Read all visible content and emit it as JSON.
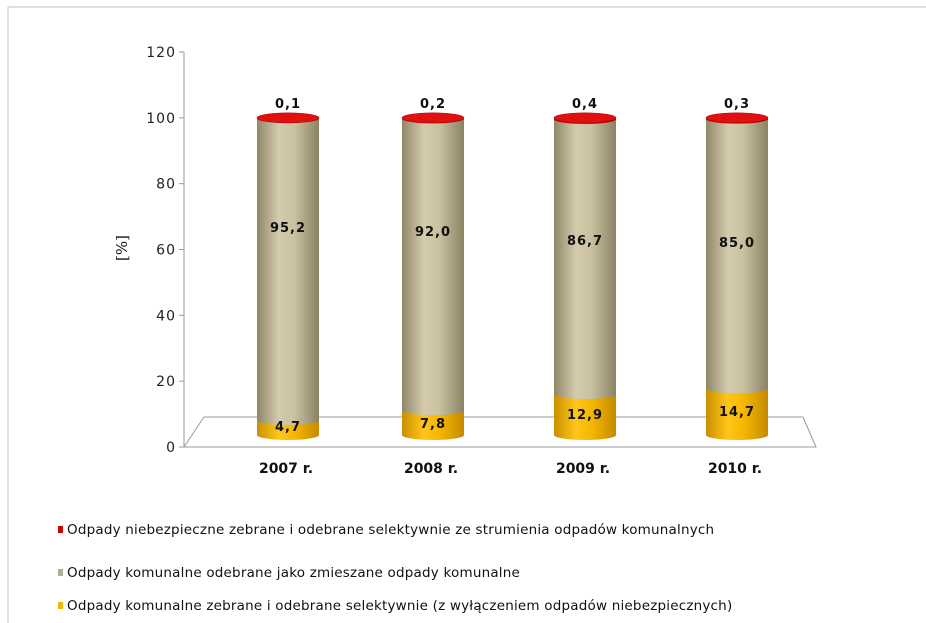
{
  "chart_data": {
    "type": "bar",
    "stacked": true,
    "orientation": "vertical",
    "style": "3d-cylinder",
    "title": "",
    "xlabel": "",
    "ylabel": "[%]",
    "ylim": [
      0,
      120
    ],
    "yticks": [
      "0",
      "20",
      "40",
      "60",
      "80",
      "100",
      "120"
    ],
    "grid": false,
    "legend_position": "bottom",
    "categories": [
      "2007 r.",
      "2008 r.",
      "2009 r.",
      "2010 r."
    ],
    "series": [
      {
        "name": "Odpady komunalne zebrane i odebrane selektywnie (z wyłączeniem odpadów niebezpiecznych)",
        "color": "#f2b600",
        "values": [
          4.7,
          7.8,
          12.9,
          14.7
        ],
        "labels": [
          "4,7",
          "7,8",
          "12,9",
          "14,7"
        ]
      },
      {
        "name": "Odpady komunalne odebrane jako zmieszane odpady komunalne",
        "color": "#c9c1a0",
        "values": [
          95.2,
          92.0,
          86.7,
          85.0
        ],
        "labels": [
          "95,2",
          "92,0",
          "86,7",
          "85,0"
        ]
      },
      {
        "name": "Odpady niebezpieczne zebrane i odebrane selektywnie ze strumienia odpadów komunalnych",
        "color": "#d40000",
        "values": [
          0.1,
          0.2,
          0.4,
          0.3
        ],
        "labels": [
          "0,1",
          "0,2",
          "0,4",
          "0,3"
        ]
      }
    ],
    "legend": [
      {
        "label": "Odpady niebezpieczne zebrane i odebrane selektywnie ze strumienia odpadów komunalnych",
        "color": "#d40000"
      },
      {
        "label": "Odpady komunalne odebrane jako zmieszane odpady komunalne",
        "color": "#b5ad8e"
      },
      {
        "label": "Odpady komunalne zebrane i odebrane selektywnie (z wyłączeniem odpadów niebezpiecznych)",
        "color": "#f2b600"
      }
    ]
  }
}
